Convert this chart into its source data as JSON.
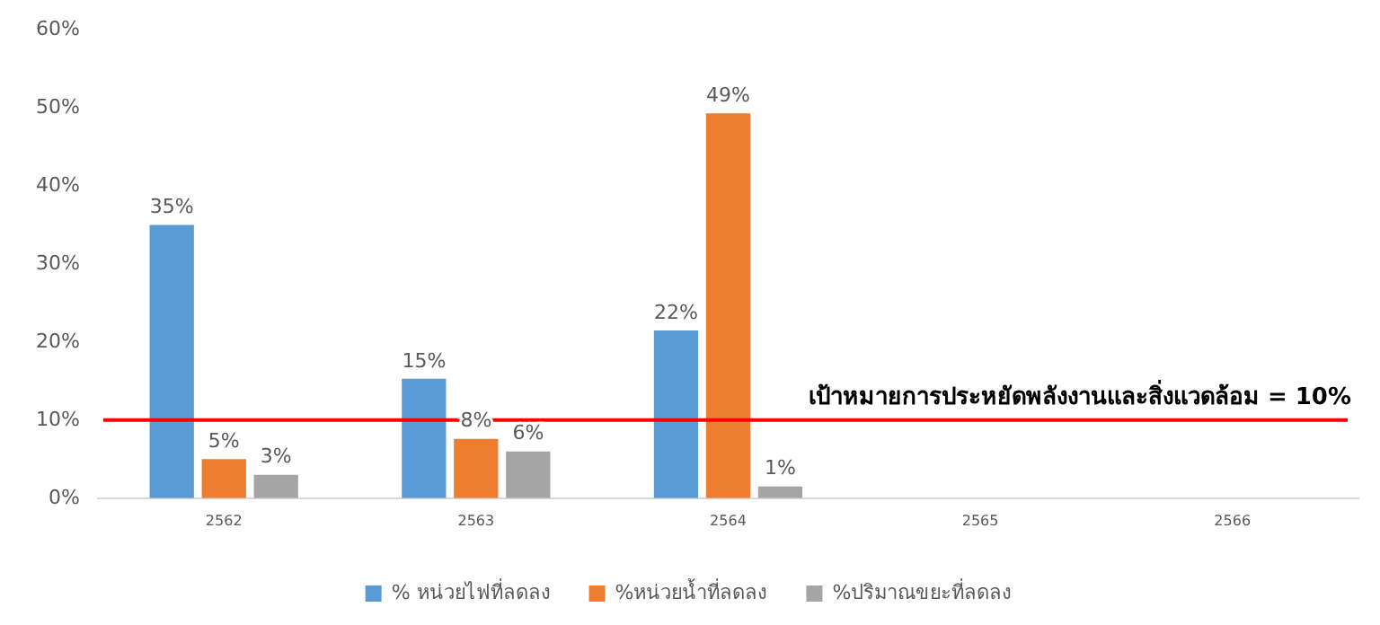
{
  "chart_data": {
    "type": "bar",
    "categories": [
      "2562",
      "2563",
      "2564",
      "2565",
      "2566"
    ],
    "series": [
      {
        "name": "% หน่วยไฟที่ลดลง",
        "color": "#5b9bd5",
        "values": [
          35,
          15.3,
          21.5,
          null,
          null
        ],
        "value_labels": [
          "35%",
          "15%",
          "22%",
          null,
          null
        ]
      },
      {
        "name": "%หน่วยน้ำที่ลดลง",
        "color": "#ed7d31",
        "values": [
          5,
          7.6,
          49.3,
          null,
          null
        ],
        "value_labels": [
          "5%",
          "8%",
          "49%",
          null,
          null
        ]
      },
      {
        "name": "%ปริมาณขยะที่ลดลง",
        "color": "#a5a5a5",
        "values": [
          3,
          6,
          1.5,
          null,
          null
        ],
        "value_labels": [
          "3%",
          "6%",
          "1%",
          null,
          null
        ]
      }
    ],
    "ylim": [
      0,
      60
    ],
    "yticks": [
      {
        "value": 0,
        "label": "0%"
      },
      {
        "value": 10,
        "label": "10%"
      },
      {
        "value": 20,
        "label": "20%"
      },
      {
        "value": 30,
        "label": "30%"
      },
      {
        "value": 40,
        "label": "40%"
      },
      {
        "value": 50,
        "label": "50%"
      },
      {
        "value": 60,
        "label": "60%"
      }
    ],
    "ref_lines": [
      {
        "axis": "y",
        "value": 10,
        "label": "เป้าหมายการประหยัดพลังงานและสิ่งแวดล้อม = 10%",
        "color": "#ff0000"
      }
    ],
    "grid": false,
    "legend": "bottom"
  }
}
